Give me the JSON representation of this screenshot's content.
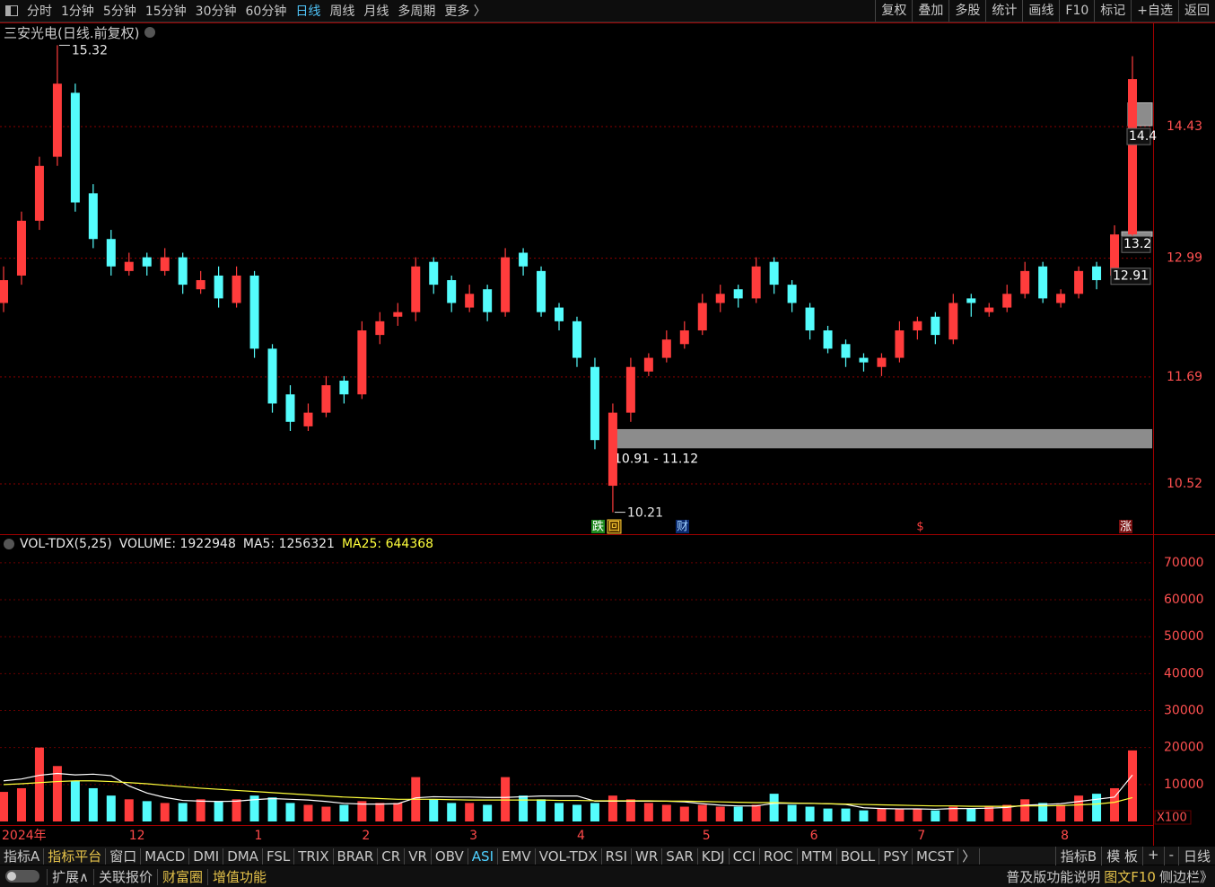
{
  "toolbar": {
    "left": [
      "分时",
      "1分钟",
      "5分钟",
      "15分钟",
      "30分钟",
      "60分钟",
      "日线",
      "周线",
      "月线",
      "多周期",
      "更多 〉"
    ],
    "right": [
      "复权",
      "叠加",
      "多股",
      "统计",
      "画线",
      "F10",
      "标记",
      "+自选",
      "返回"
    ]
  },
  "chart_data": [
    {
      "type": "candlestick",
      "title": "三安光电(日线.前复权)",
      "categories": [
        "2024年",
        null,
        null,
        null,
        null,
        null,
        null,
        "12",
        null,
        null,
        null,
        null,
        null,
        null,
        "1",
        null,
        null,
        null,
        null,
        null,
        "2",
        null,
        null,
        null,
        null,
        null,
        "3",
        null,
        null,
        null,
        null,
        null,
        "4",
        null,
        null,
        null,
        null,
        null,
        null,
        "5",
        null,
        null,
        null,
        null,
        null,
        "6",
        null,
        null,
        null,
        null,
        null,
        "7",
        null,
        null,
        null,
        null,
        null,
        null,
        null,
        "8",
        null,
        null,
        null,
        null
      ],
      "open": [
        12.5,
        12.8,
        13.4,
        14.1,
        14.8,
        13.7,
        13.2,
        12.85,
        13.0,
        12.85,
        13.0,
        12.65,
        12.8,
        12.5,
        12.8,
        12.0,
        11.5,
        11.15,
        11.3,
        11.65,
        11.5,
        12.15,
        12.35,
        12.4,
        12.95,
        12.75,
        12.45,
        12.65,
        12.4,
        13.05,
        12.85,
        12.45,
        12.3,
        11.8,
        10.5,
        11.3,
        11.75,
        11.9,
        12.05,
        12.2,
        12.5,
        12.65,
        12.55,
        12.95,
        12.7,
        12.45,
        12.2,
        12.05,
        11.9,
        11.8,
        11.9,
        12.2,
        12.35,
        12.1,
        12.55,
        12.4,
        12.45,
        12.6,
        12.9,
        12.5,
        12.6,
        12.9,
        12.8,
        13.25
      ],
      "high": [
        12.9,
        13.5,
        14.1,
        15.32,
        14.9,
        13.8,
        13.3,
        13.05,
        13.05,
        13.1,
        13.05,
        12.85,
        12.9,
        12.9,
        12.85,
        12.05,
        11.6,
        11.4,
        11.7,
        11.7,
        12.3,
        12.4,
        12.5,
        13.0,
        13.0,
        12.8,
        12.7,
        12.7,
        13.1,
        13.1,
        12.9,
        12.5,
        12.35,
        11.9,
        11.4,
        11.9,
        11.95,
        12.2,
        12.3,
        12.6,
        12.7,
        12.7,
        13.0,
        13.0,
        12.75,
        12.5,
        12.25,
        12.1,
        11.95,
        11.95,
        12.3,
        12.35,
        12.4,
        12.6,
        12.6,
        12.5,
        12.7,
        12.95,
        12.95,
        12.65,
        12.9,
        12.95,
        13.35,
        15.2
      ],
      "low": [
        12.4,
        12.7,
        13.3,
        14.0,
        13.5,
        13.1,
        12.8,
        12.8,
        12.8,
        12.8,
        12.6,
        12.6,
        12.45,
        12.45,
        11.9,
        11.3,
        11.1,
        11.1,
        11.25,
        11.4,
        11.45,
        12.05,
        12.25,
        12.3,
        12.6,
        12.4,
        12.4,
        12.3,
        12.35,
        12.8,
        12.35,
        12.2,
        11.8,
        10.9,
        10.21,
        11.2,
        11.7,
        11.85,
        12.0,
        12.15,
        12.4,
        12.45,
        12.5,
        12.6,
        12.4,
        12.1,
        11.95,
        11.8,
        11.75,
        11.7,
        11.85,
        12.1,
        12.05,
        12.05,
        12.35,
        12.35,
        12.4,
        12.55,
        12.5,
        12.45,
        12.55,
        12.65,
        12.75,
        13.2
      ],
      "close": [
        12.75,
        13.4,
        14.0,
        14.9,
        13.6,
        13.2,
        12.9,
        12.95,
        12.9,
        13.0,
        12.7,
        12.75,
        12.55,
        12.8,
        12.0,
        11.4,
        11.2,
        11.3,
        11.6,
        11.5,
        12.2,
        12.3,
        12.4,
        12.9,
        12.7,
        12.5,
        12.6,
        12.4,
        13.0,
        12.9,
        12.4,
        12.3,
        11.9,
        11.0,
        11.3,
        11.8,
        11.9,
        12.1,
        12.2,
        12.5,
        12.6,
        12.55,
        12.9,
        12.7,
        12.5,
        12.2,
        12.0,
        11.9,
        11.85,
        11.9,
        12.2,
        12.3,
        12.15,
        12.5,
        12.5,
        12.45,
        12.6,
        12.85,
        12.55,
        12.6,
        12.85,
        12.75,
        13.25,
        14.95
      ],
      "up_color": "#ff3c3c",
      "down_color": "#54fcfc",
      "ylim": [
        9.98,
        15.56
      ],
      "yticks": [
        10.52,
        11.69,
        12.99,
        14.43
      ],
      "grid": true,
      "zone": {
        "low": 10.91,
        "high": 11.12,
        "label": "10.91 - 11.12"
      },
      "boxes": [
        {
          "low": 14.44,
          "high": 14.69
        },
        {
          "low": 13.23,
          "high": 13.28
        }
      ],
      "right_labels": [
        {
          "value": 14.4,
          "label": "14.4"
        },
        {
          "value": 13.2,
          "label": "13.2"
        },
        {
          "value": 12.91,
          "label": "12.91"
        }
      ],
      "events": [
        {
          "label": "跌"
        },
        {
          "label": "回"
        },
        {
          "label": "财"
        },
        {
          "label": "$"
        },
        {
          "label": "涨"
        }
      ]
    },
    {
      "type": "bar",
      "header": "VOL-TDX(5,25)",
      "unit_label": "X100",
      "up_color": "#ff3c3c",
      "down_color": "#54fcfc",
      "ylim": [
        0,
        77500
      ],
      "yticks": [
        10000,
        20000,
        30000,
        40000,
        50000,
        60000,
        70000
      ],
      "grid": true,
      "series": [
        {
          "label": "VOLUME: 1922948",
          "values": [
            8000,
            9000,
            20000,
            15000,
            11000,
            9000,
            7000,
            6000,
            5500,
            5000,
            5000,
            6000,
            5500,
            6000,
            7000,
            6500,
            5000,
            4500,
            4000,
            4500,
            5500,
            5000,
            5000,
            12000,
            6000,
            5000,
            5000,
            4500,
            12000,
            7000,
            6000,
            5000,
            4500,
            5000,
            7000,
            6000,
            5000,
            4500,
            4000,
            4500,
            4000,
            4000,
            4500,
            7500,
            4500,
            4000,
            3500,
            3500,
            3000,
            3500,
            3500,
            3500,
            3000,
            4000,
            3500,
            4000,
            4500,
            6000,
            5000,
            4500,
            7000,
            7500,
            9000,
            19229
          ]
        },
        {
          "label": "MA5: 1256321",
          "color": "#ffffff",
          "values": [
            11000,
            11500,
            12500,
            13000,
            12600,
            12800,
            12400,
            9600,
            7700,
            6500,
            5700,
            5500,
            5400,
            5500,
            5900,
            6200,
            6000,
            5800,
            5400,
            4900,
            4700,
            4700,
            4800,
            6400,
            6700,
            6600,
            6600,
            6500,
            6500,
            6700,
            6900,
            6900,
            6900,
            5500,
            5500,
            5500,
            5500,
            5500,
            5300,
            4800,
            4400,
            4200,
            4200,
            4900,
            4900,
            4900,
            4800,
            4600,
            3700,
            3500,
            3400,
            3400,
            3300,
            3500,
            3500,
            3600,
            3800,
            4400,
            4600,
            4800,
            5400,
            6000,
            6600,
            12563
          ]
        },
        {
          "label": "MA25: 644368",
          "color": "#ffff3c",
          "values": [
            10000,
            10200,
            10500,
            10800,
            11000,
            11000,
            10800,
            10500,
            10200,
            9800,
            9400,
            9000,
            8700,
            8400,
            8100,
            7800,
            7500,
            7200,
            6900,
            6600,
            6400,
            6200,
            6000,
            6000,
            6000,
            5900,
            5800,
            5800,
            5800,
            5800,
            5800,
            5700,
            5700,
            5600,
            5600,
            5600,
            5600,
            5500,
            5500,
            5400,
            5300,
            5200,
            5100,
            5100,
            5000,
            4900,
            4800,
            4700,
            4600,
            4500,
            4400,
            4300,
            4200,
            4200,
            4100,
            4100,
            4100,
            4200,
            4200,
            4300,
            4500,
            4700,
            5200,
            6444
          ]
        }
      ]
    }
  ],
  "tabs": {
    "left": [
      "指标A",
      "指标平台",
      "窗口",
      "MACD",
      "DMI",
      "DMA",
      "FSL",
      "TRIX",
      "BRAR",
      "CR",
      "VR",
      "OBV",
      "ASI",
      "EMV",
      "VOL-TDX",
      "RSI",
      "WR",
      "SAR",
      "KDJ",
      "CCI",
      "ROC",
      "MTM",
      "BOLL",
      "PSY",
      "MCST",
      "〉"
    ],
    "right": [
      "指标B",
      "模 板",
      "+",
      "-"
    ],
    "period": "日线"
  },
  "status": {
    "left": [
      "扩展∧",
      "关联报价",
      "财富圈",
      "增值功能"
    ],
    "right": [
      "普及版功能说明",
      "图文F10",
      "侧边栏》"
    ]
  }
}
